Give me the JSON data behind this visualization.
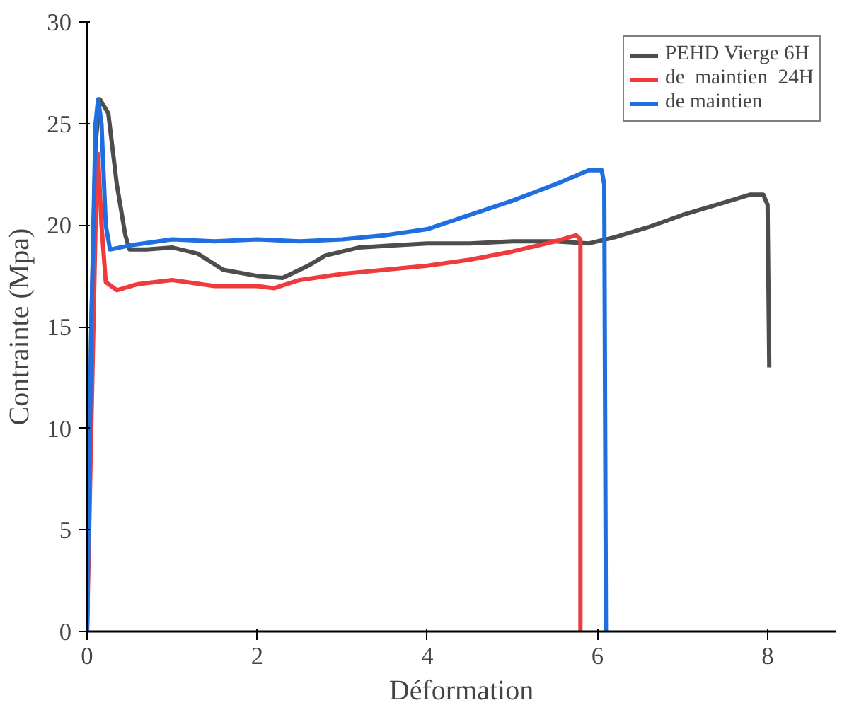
{
  "chart_data": {
    "type": "line",
    "xlabel": "Déformation",
    "ylabel": "Contrainte (Mpa)",
    "xlim": [
      0,
      8.8
    ],
    "ylim": [
      0,
      30
    ],
    "xticks": [
      0,
      2,
      4,
      6,
      8
    ],
    "yticks": [
      0,
      5,
      10,
      15,
      20,
      25,
      30
    ],
    "grid": false,
    "legend": "top right",
    "line_style": "solid",
    "marker": "none",
    "series": [
      {
        "name": "PEHD Vierge 6H",
        "color": "#4d4d4d",
        "x": [
          0,
          0.05,
          0.1,
          0.15,
          0.25,
          0.35,
          0.45,
          0.5,
          0.7,
          1.0,
          1.3,
          1.6,
          2.0,
          2.3,
          2.6,
          2.8,
          3.2,
          3.6,
          4.0,
          4.5,
          5.0,
          5.5,
          5.9,
          6.2,
          6.6,
          7.0,
          7.4,
          7.8,
          7.95,
          8.0,
          8.02
        ],
        "values": [
          0,
          15,
          24,
          26.2,
          25.5,
          22,
          19.5,
          18.8,
          18.8,
          18.9,
          18.6,
          17.8,
          17.5,
          17.4,
          18,
          18.5,
          18.9,
          19,
          19.1,
          19.1,
          19.2,
          19.2,
          19.1,
          19.4,
          19.9,
          20.5,
          21,
          21.5,
          21.5,
          21,
          13
        ]
      },
      {
        "name": "de  maintien  24H",
        "color": "#ef3b3b",
        "x": [
          0,
          0.05,
          0.1,
          0.13,
          0.17,
          0.22,
          0.35,
          0.6,
          1.0,
          1.5,
          2.0,
          2.2,
          2.5,
          3.0,
          3.5,
          4.0,
          4.5,
          5.0,
          5.5,
          5.75,
          5.8,
          5.8
        ],
        "values": [
          0,
          10,
          20,
          23.5,
          20,
          17.2,
          16.8,
          17.1,
          17.3,
          17,
          17,
          16.9,
          17.3,
          17.6,
          17.8,
          18,
          18.3,
          18.7,
          19.2,
          19.5,
          19.3,
          0
        ]
      },
      {
        "name": "de maintien",
        "color": "#1f6fe0",
        "x": [
          0,
          0.05,
          0.1,
          0.13,
          0.17,
          0.22,
          0.27,
          0.5,
          1.0,
          1.5,
          2.0,
          2.5,
          3.0,
          3.5,
          4.0,
          4.5,
          5.0,
          5.5,
          5.9,
          6.05,
          6.08,
          6.1
        ],
        "values": [
          0,
          15,
          25,
          26.2,
          25,
          20,
          18.8,
          19,
          19.3,
          19.2,
          19.3,
          19.2,
          19.3,
          19.5,
          19.8,
          20.5,
          21.2,
          22,
          22.7,
          22.7,
          22,
          0
        ]
      }
    ]
  }
}
